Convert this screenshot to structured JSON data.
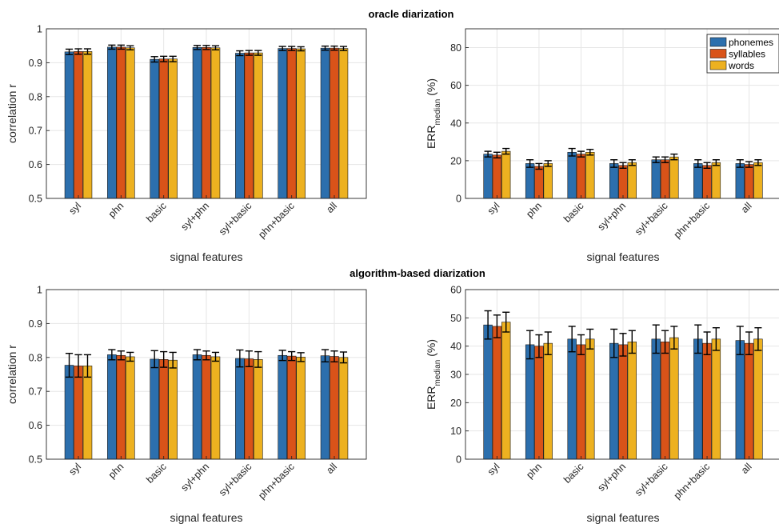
{
  "section_titles": {
    "top": "oracle diarization",
    "bottom": "algorithm-based diarization"
  },
  "legend": {
    "items": [
      "phonemes",
      "syllables",
      "words"
    ],
    "placement": "top-right"
  },
  "colors": {
    "phonemes": "#2c6fad",
    "syllables": "#d95319",
    "words": "#edb120",
    "grid": "#e6e6e6",
    "axis": "#262626",
    "errorbar": "#000000"
  },
  "chart_data": [
    {
      "id": "oracle-correlation",
      "type": "bar",
      "section": "oracle diarization",
      "categories": [
        "syl",
        "phn",
        "basic",
        "syl+phn",
        "syl+basic",
        "phn+basic",
        "all"
      ],
      "xlabel": "signal features",
      "ylabel": "correlation r",
      "ylim": [
        0.5,
        1
      ],
      "yticks": [
        0.5,
        0.6,
        0.7,
        0.8,
        0.9,
        1
      ],
      "ytick_labels": [
        "0.5",
        "0.6",
        "0.7",
        "0.8",
        "0.9",
        "1"
      ],
      "grid": true,
      "legend": false,
      "series": [
        {
          "name": "phonemes",
          "values": [
            0.932,
            0.946,
            0.91,
            0.945,
            0.928,
            0.942,
            0.943
          ],
          "err": [
            0.008,
            0.006,
            0.008,
            0.006,
            0.007,
            0.006,
            0.006
          ]
        },
        {
          "name": "syllables",
          "values": [
            0.933,
            0.946,
            0.911,
            0.945,
            0.929,
            0.942,
            0.943
          ],
          "err": [
            0.008,
            0.006,
            0.008,
            0.006,
            0.007,
            0.006,
            0.006
          ]
        },
        {
          "name": "words",
          "values": [
            0.933,
            0.944,
            0.911,
            0.944,
            0.929,
            0.941,
            0.942
          ],
          "err": [
            0.008,
            0.006,
            0.008,
            0.006,
            0.007,
            0.006,
            0.006
          ]
        }
      ]
    },
    {
      "id": "oracle-err",
      "type": "bar",
      "section": "oracle diarization",
      "categories": [
        "syl",
        "phn",
        "basic",
        "syl+phn",
        "syl+basic",
        "phn+basic",
        "all"
      ],
      "xlabel": "signal features",
      "ylabel_main": "ERR",
      "ylabel_sub": "median",
      "ylabel_unit": " (%)",
      "ylim": [
        0,
        90
      ],
      "yticks": [
        0,
        20,
        40,
        60,
        80
      ],
      "ytick_labels": [
        "0",
        "20",
        "40",
        "60",
        "80"
      ],
      "grid": true,
      "legend": true,
      "series": [
        {
          "name": "phonemes",
          "values": [
            23.5,
            18.5,
            24.5,
            18.5,
            20.5,
            18.5,
            18.5
          ],
          "err": [
            1.5,
            2.0,
            2.0,
            2.0,
            1.5,
            2.0,
            2.0
          ]
        },
        {
          "name": "syllables",
          "values": [
            23.0,
            17.0,
            23.5,
            17.5,
            20.5,
            17.5,
            18.0
          ],
          "err": [
            1.5,
            1.5,
            1.5,
            1.5,
            1.5,
            1.5,
            1.5
          ]
        },
        {
          "name": "words",
          "values": [
            25.0,
            18.5,
            24.5,
            19.0,
            22.0,
            19.0,
            19.0
          ],
          "err": [
            1.5,
            1.5,
            1.5,
            1.5,
            1.5,
            1.5,
            1.5
          ]
        }
      ]
    },
    {
      "id": "algorithm-correlation",
      "type": "bar",
      "section": "algorithm-based diarization",
      "categories": [
        "syl",
        "phn",
        "basic",
        "syl+phn",
        "syl+basic",
        "phn+basic",
        "all"
      ],
      "xlabel": "signal features",
      "ylabel": "correlation r",
      "ylim": [
        0.5,
        1
      ],
      "yticks": [
        0.5,
        0.6,
        0.7,
        0.8,
        0.9,
        1
      ],
      "ytick_labels": [
        "0.5",
        "0.6",
        "0.7",
        "0.8",
        "0.9",
        "1"
      ],
      "grid": true,
      "legend": false,
      "series": [
        {
          "name": "phonemes",
          "values": [
            0.777,
            0.808,
            0.795,
            0.808,
            0.797,
            0.806,
            0.805
          ],
          "err": [
            0.035,
            0.015,
            0.025,
            0.015,
            0.025,
            0.015,
            0.018
          ]
        },
        {
          "name": "syllables",
          "values": [
            0.775,
            0.806,
            0.794,
            0.806,
            0.796,
            0.804,
            0.803
          ],
          "err": [
            0.033,
            0.013,
            0.023,
            0.013,
            0.023,
            0.013,
            0.016
          ]
        },
        {
          "name": "words",
          "values": [
            0.775,
            0.802,
            0.792,
            0.802,
            0.794,
            0.801,
            0.8
          ],
          "err": [
            0.033,
            0.013,
            0.023,
            0.013,
            0.023,
            0.013,
            0.016
          ]
        }
      ]
    },
    {
      "id": "algorithm-err",
      "type": "bar",
      "section": "algorithm-based diarization",
      "categories": [
        "syl",
        "phn",
        "basic",
        "syl+phn",
        "syl+basic",
        "phn+basic",
        "all"
      ],
      "xlabel": "signal features",
      "ylabel_main": "ERR",
      "ylabel_sub": "median",
      "ylabel_unit": " (%)",
      "ylim": [
        0,
        60
      ],
      "yticks": [
        0,
        10,
        20,
        30,
        40,
        50,
        60
      ],
      "ytick_labels": [
        "0",
        "10",
        "20",
        "30",
        "40",
        "50",
        "60"
      ],
      "grid": true,
      "legend": false,
      "series": [
        {
          "name": "phonemes",
          "values": [
            47.5,
            40.5,
            42.5,
            41.0,
            42.5,
            42.5,
            42.0
          ],
          "err": [
            5.0,
            5.0,
            4.5,
            5.0,
            5.0,
            5.0,
            5.0
          ]
        },
        {
          "name": "syllables",
          "values": [
            47.0,
            40.0,
            40.5,
            40.5,
            41.5,
            41.0,
            41.0
          ],
          "err": [
            4.0,
            4.0,
            3.5,
            4.0,
            4.0,
            4.0,
            4.0
          ]
        },
        {
          "name": "words",
          "values": [
            48.5,
            41.0,
            42.5,
            41.5,
            43.0,
            42.5,
            42.5
          ],
          "err": [
            3.5,
            4.0,
            3.5,
            4.0,
            4.0,
            4.0,
            4.0
          ]
        }
      ]
    }
  ]
}
